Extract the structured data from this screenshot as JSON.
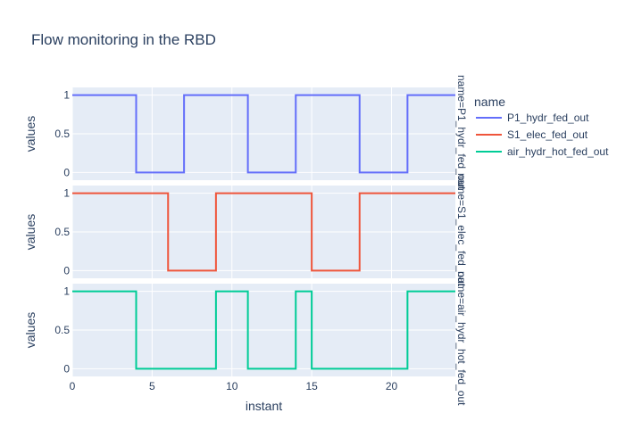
{
  "chart_data": {
    "type": "line",
    "line_shape": "step",
    "title": "Flow monitoring in the RBD",
    "xlabel": "instant",
    "ylabel": "values",
    "xlim": [
      0,
      24
    ],
    "ylim": [
      -0.1,
      1.1
    ],
    "x_ticks": [
      0,
      5,
      10,
      15,
      20
    ],
    "y_ticks": [
      0,
      0.5,
      1
    ],
    "grid": true,
    "legend": {
      "title": "name",
      "placement": "top-right"
    },
    "series": [
      {
        "name": "P1_hydr_fed_out",
        "facet_label": "name=P1_hydr_fed_out",
        "color": "#636efa",
        "x": [
          0,
          4,
          7,
          11,
          14,
          18,
          21,
          24
        ],
        "y": [
          1,
          0,
          1,
          0,
          1,
          0,
          1,
          1
        ]
      },
      {
        "name": "S1_elec_fed_out",
        "facet_label": "name=S1_elec_fed_out",
        "color": "#EF553B",
        "x": [
          0,
          6,
          9,
          15,
          18,
          24
        ],
        "y": [
          1,
          0,
          1,
          0,
          1,
          1
        ]
      },
      {
        "name": "air_hydr_hot_fed_out",
        "facet_label": "name=air_hydr_hot_fed_out",
        "color": "#00cc96",
        "x": [
          0,
          4,
          9,
          11,
          14,
          15,
          21,
          24
        ],
        "y": [
          1,
          0,
          1,
          0,
          1,
          0,
          1,
          1
        ]
      }
    ]
  }
}
